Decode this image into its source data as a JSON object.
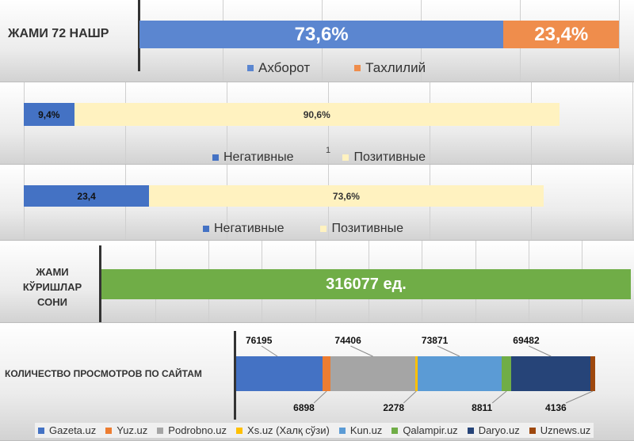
{
  "chart_data": [
    {
      "type": "bar",
      "orientation": "horizontal",
      "stacked": true,
      "categories": [
        "ЖАМИ 72 НАШР"
      ],
      "series": [
        {
          "name": "Ахборот",
          "values": [
            73.6
          ],
          "label": "73,6%",
          "color": "#5b86d0"
        },
        {
          "name": "Тахлилий",
          "values": [
            23.4
          ],
          "label": "23,4%",
          "color": "#ef8d4c"
        }
      ],
      "legend_position": "bottom",
      "grid": true
    },
    {
      "type": "bar",
      "orientation": "horizontal",
      "stacked": true,
      "categories": [
        "1"
      ],
      "series": [
        {
          "name": "Негативные",
          "values": [
            9.4
          ],
          "label": "9,4%",
          "color": "#4472c4"
        },
        {
          "name": "Позитивные",
          "values": [
            90.6
          ],
          "label": "90,6%",
          "color": "#fff2c0"
        }
      ],
      "legend_position": "bottom",
      "grid": true
    },
    {
      "type": "bar",
      "orientation": "horizontal",
      "stacked": true,
      "series": [
        {
          "name": "Негативные",
          "values": [
            23.4
          ],
          "label": "23,4",
          "color": "#4472c4"
        },
        {
          "name": "Позитивные",
          "values": [
            73.6
          ],
          "label": "73,6%",
          "color": "#fff2c0"
        }
      ],
      "legend_position": "bottom",
      "grid": true
    },
    {
      "type": "bar",
      "orientation": "horizontal",
      "categories": [
        "ЖАМИ КЎРИШЛАР СОНИ"
      ],
      "values": [
        316077
      ],
      "label": "316077 ед.",
      "color": "#70ad47",
      "grid": true
    },
    {
      "type": "bar",
      "orientation": "horizontal",
      "stacked": true,
      "categories": [
        "КОЛИЧЕСТВО ПРОСМОТРОВ ПО САЙТАМ"
      ],
      "series": [
        {
          "name": "Gazeta.uz",
          "values": [
            76195
          ],
          "label": "76195",
          "color": "#4472c4"
        },
        {
          "name": "Yuz.uz",
          "values": [
            6898
          ],
          "label": "6898",
          "color": "#ed7d31"
        },
        {
          "name": "Podrobno.uz",
          "values": [
            74406
          ],
          "label": "74406",
          "color": "#a5a5a5"
        },
        {
          "name": "Xs.uz (Халқ сўзи)",
          "values": [
            2278
          ],
          "label": "2278",
          "color": "#ffc000"
        },
        {
          "name": "Kun.uz",
          "values": [
            73871
          ],
          "label": "73871",
          "color": "#5b9bd5"
        },
        {
          "name": "Qalampir.uz",
          "values": [
            8811
          ],
          "label": "8811",
          "color": "#70ad47"
        },
        {
          "name": "Daryo.uz",
          "values": [
            69482
          ],
          "label": "69482",
          "color": "#264478"
        },
        {
          "name": "Uznews.uz",
          "values": [
            4136
          ],
          "label": "4136",
          "color": "#9e480e"
        }
      ],
      "legend_position": "bottom"
    }
  ]
}
